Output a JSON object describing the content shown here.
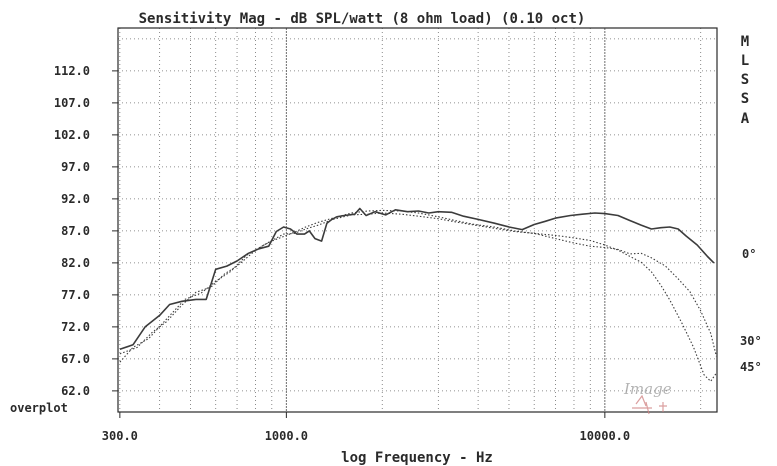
{
  "chart_data": {
    "type": "line",
    "title": "Sensitivity Mag - dB SPL/watt (8 ohm load) (0.10 oct)",
    "xlabel": "log Frequency - Hz",
    "ylabel": "",
    "x_scale": "log",
    "xlim": [
      296,
      22500
    ],
    "ylim": [
      58.7,
      118.7
    ],
    "grid": true,
    "x_tick_labels": [
      {
        "value": 300,
        "label": "300.0"
      },
      {
        "value": 1000,
        "label": "1000.0"
      },
      {
        "value": 10000,
        "label": "10000.0"
      }
    ],
    "y_tick_labels": [
      {
        "value": 112,
        "label": "112.0"
      },
      {
        "value": 107,
        "label": "107.0"
      },
      {
        "value": 102,
        "label": "102.0"
      },
      {
        "value": 97,
        "label": "97.0"
      },
      {
        "value": 92,
        "label": "92.0"
      },
      {
        "value": 87,
        "label": "87.0"
      },
      {
        "value": 82,
        "label": "82.0"
      },
      {
        "value": 77,
        "label": "77.0"
      },
      {
        "value": 72,
        "label": "72.0"
      },
      {
        "value": 67,
        "label": "67.0"
      },
      {
        "value": 62,
        "label": "62.0"
      }
    ],
    "bottom_left_label": "overplot",
    "side_label": [
      "M",
      "L",
      "S",
      "S",
      "A"
    ],
    "series": [
      {
        "name": "0°",
        "style": "solid",
        "points": [
          [
            300,
            68.5
          ],
          [
            330,
            69.2
          ],
          [
            360,
            72
          ],
          [
            400,
            73.8
          ],
          [
            430,
            75.5
          ],
          [
            470,
            76
          ],
          [
            520,
            76.3
          ],
          [
            560,
            76.3
          ],
          [
            600,
            81
          ],
          [
            650,
            81.5
          ],
          [
            700,
            82.3
          ],
          [
            760,
            83.5
          ],
          [
            820,
            84.2
          ],
          [
            880,
            84.6
          ],
          [
            930,
            86.9
          ],
          [
            980,
            87.6
          ],
          [
            1030,
            87.3
          ],
          [
            1080,
            86.5
          ],
          [
            1140,
            86.5
          ],
          [
            1180,
            87
          ],
          [
            1230,
            85.8
          ],
          [
            1290,
            85.4
          ],
          [
            1340,
            88.2
          ],
          [
            1390,
            88.8
          ],
          [
            1440,
            89.2
          ],
          [
            1520,
            89.4
          ],
          [
            1640,
            89.6
          ],
          [
            1700,
            90.5
          ],
          [
            1780,
            89.4
          ],
          [
            1900,
            90
          ],
          [
            2050,
            89.5
          ],
          [
            2200,
            90.3
          ],
          [
            2400,
            90
          ],
          [
            2600,
            90.1
          ],
          [
            2800,
            89.8
          ],
          [
            3000,
            90
          ],
          [
            3300,
            89.9
          ],
          [
            3600,
            89.3
          ],
          [
            4000,
            88.8
          ],
          [
            4500,
            88.2
          ],
          [
            5000,
            87.6
          ],
          [
            5500,
            87.2
          ],
          [
            6000,
            88
          ],
          [
            6500,
            88.5
          ],
          [
            7000,
            89
          ],
          [
            7800,
            89.4
          ],
          [
            8500,
            89.6
          ],
          [
            9300,
            89.8
          ],
          [
            10000,
            89.7
          ],
          [
            11000,
            89.4
          ],
          [
            12000,
            88.6
          ],
          [
            13000,
            87.9
          ],
          [
            14000,
            87.3
          ],
          [
            15000,
            87.5
          ],
          [
            16000,
            87.6
          ],
          [
            17000,
            87.3
          ],
          [
            18000,
            86.2
          ],
          [
            19500,
            84.8
          ],
          [
            21000,
            83
          ],
          [
            22000,
            82
          ]
        ]
      },
      {
        "name": "30°",
        "style": "dotted",
        "points": [
          [
            300,
            67.8
          ],
          [
            340,
            68.8
          ],
          [
            380,
            71.2
          ],
          [
            420,
            72.8
          ],
          [
            470,
            75.4
          ],
          [
            520,
            77.4
          ],
          [
            580,
            78.2
          ],
          [
            640,
            80.3
          ],
          [
            700,
            81.5
          ],
          [
            780,
            83.5
          ],
          [
            850,
            84.8
          ],
          [
            920,
            85.6
          ],
          [
            990,
            86.2
          ],
          [
            1060,
            86.8
          ],
          [
            1150,
            87.6
          ],
          [
            1250,
            88.3
          ],
          [
            1400,
            89
          ],
          [
            1600,
            89.8
          ],
          [
            1800,
            90.1
          ],
          [
            2000,
            90.2
          ],
          [
            2300,
            90.1
          ],
          [
            2600,
            89.8
          ],
          [
            3000,
            89.2
          ],
          [
            3400,
            88.6
          ],
          [
            3900,
            88
          ],
          [
            4500,
            87.6
          ],
          [
            5200,
            87
          ],
          [
            6000,
            86.6
          ],
          [
            7000,
            85.8
          ],
          [
            8000,
            85.1
          ],
          [
            9000,
            84.6
          ],
          [
            10000,
            84.4
          ],
          [
            11000,
            84.1
          ],
          [
            12000,
            83.4
          ],
          [
            13000,
            83.5
          ],
          [
            14000,
            82.8
          ],
          [
            15500,
            81.5
          ],
          [
            17000,
            79.5
          ],
          [
            18500,
            77.5
          ],
          [
            20000,
            74.5
          ],
          [
            21500,
            71
          ],
          [
            22400,
            67.4
          ]
        ]
      },
      {
        "name": "45°",
        "style": "dotted",
        "points": [
          [
            300,
            66.5
          ],
          [
            330,
            68.8
          ],
          [
            370,
            70.2
          ],
          [
            420,
            73.2
          ],
          [
            480,
            76.3
          ],
          [
            540,
            77.3
          ],
          [
            600,
            79.1
          ],
          [
            670,
            80.7
          ],
          [
            750,
            83.2
          ],
          [
            830,
            84.5
          ],
          [
            900,
            85.5
          ],
          [
            980,
            86.5
          ],
          [
            1060,
            86.6
          ],
          [
            1150,
            87.3
          ],
          [
            1260,
            87.9
          ],
          [
            1400,
            88.8
          ],
          [
            1600,
            89.5
          ],
          [
            1800,
            89.6
          ],
          [
            2000,
            89.8
          ],
          [
            2300,
            89.6
          ],
          [
            2600,
            89.3
          ],
          [
            3000,
            88.9
          ],
          [
            3400,
            88.4
          ],
          [
            3900,
            87.9
          ],
          [
            4500,
            87.4
          ],
          [
            5200,
            86.9
          ],
          [
            6000,
            86.6
          ],
          [
            7000,
            86.3
          ],
          [
            8000,
            85.9
          ],
          [
            9000,
            85.5
          ],
          [
            10000,
            84.8
          ],
          [
            11000,
            84
          ],
          [
            12000,
            83
          ],
          [
            13000,
            82.1
          ],
          [
            14000,
            80.6
          ],
          [
            15000,
            78.5
          ],
          [
            16000,
            76.2
          ],
          [
            17500,
            72.5
          ],
          [
            19000,
            68.8
          ],
          [
            20500,
            64.5
          ],
          [
            21500,
            63.5
          ],
          [
            22400,
            64.8
          ]
        ]
      }
    ],
    "series_labels": [
      "0°",
      "30°",
      "45°"
    ],
    "colors": {
      "line": "#3c3c3c",
      "grid": "#6e6e6e",
      "axis": "#2a2a2a",
      "text": "#2a2a2a"
    }
  }
}
